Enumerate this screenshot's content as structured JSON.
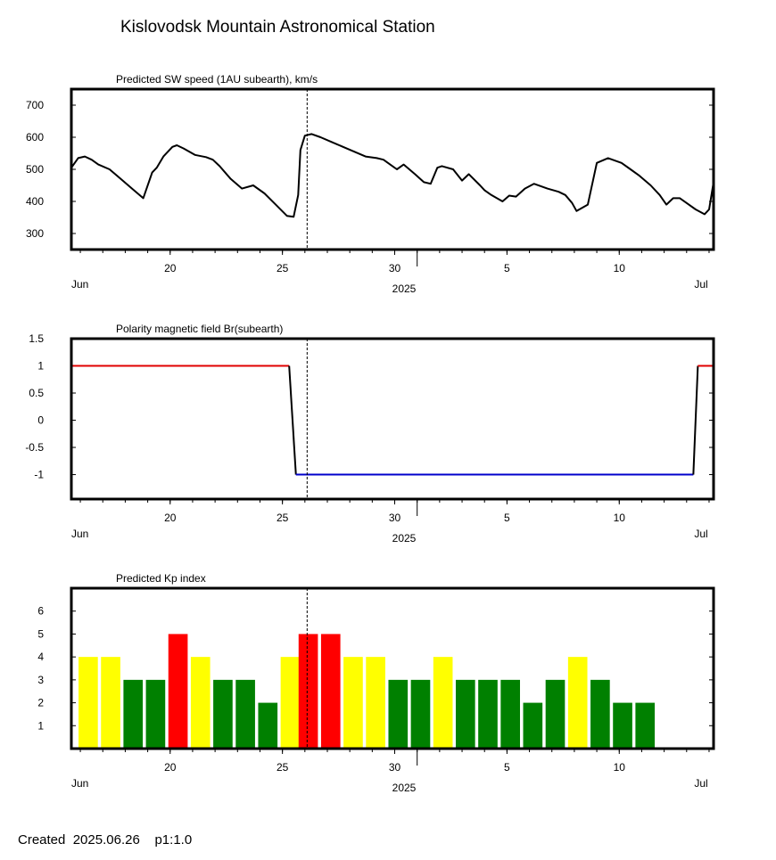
{
  "title": "Kislovodsk Mountain Astronomical Station",
  "footer": {
    "created_label": "Created",
    "created_date": "2025.06.26",
    "scale": "p1:1.0"
  },
  "time_axis": {
    "year_label": "2025",
    "month_labels": [
      "Jun",
      "Jul"
    ],
    "tick_labels": [
      "20",
      "25",
      "30",
      "5",
      "10"
    ],
    "current_day": 26.1
  },
  "chart_data": [
    {
      "type": "line",
      "title": "Predicted SW speed (1AU subearth), km/s",
      "xlabel": "2025",
      "ylabel": "",
      "x_units": "days since 2025-06-00 (June day number; 31 = July 1)",
      "ylim": [
        250,
        750
      ],
      "yticks": [
        300,
        400,
        500,
        600,
        700
      ],
      "series": [
        {
          "color": "#000000",
          "x": [
            15.6,
            15.9,
            16.2,
            16.5,
            16.8,
            17.3,
            17.8,
            18.3,
            18.8,
            19.2,
            19.4,
            19.7,
            20.1,
            20.3,
            20.6,
            21.1,
            21.6,
            21.9,
            22.2,
            22.7,
            23.2,
            23.7,
            24.2,
            24.7,
            25.2,
            25.5,
            25.7,
            25.8,
            26.0,
            26.3,
            26.7,
            27.2,
            27.7,
            28.2,
            28.7,
            29.2,
            29.5,
            29.9,
            30.1,
            30.4,
            30.9,
            31.3,
            31.6,
            31.9,
            32.1,
            32.6,
            33.0,
            33.3,
            33.8,
            34.0,
            34.3,
            34.8,
            35.1,
            35.4,
            35.8,
            36.2,
            36.8,
            37.3,
            37.6,
            37.9,
            38.1,
            38.6,
            39.0,
            39.5,
            40.1,
            40.5,
            40.9,
            41.4,
            41.8,
            42.1,
            42.4,
            42.7,
            43.0,
            43.4,
            43.8,
            44.0,
            44.2
          ],
          "y": [
            505,
            535,
            540,
            530,
            515,
            500,
            470,
            440,
            410,
            490,
            505,
            540,
            570,
            575,
            565,
            545,
            538,
            530,
            510,
            470,
            440,
            450,
            425,
            390,
            355,
            352,
            420,
            560,
            605,
            610,
            600,
            585,
            570,
            555,
            540,
            535,
            530,
            510,
            500,
            515,
            485,
            460,
            455,
            505,
            510,
            500,
            465,
            485,
            450,
            435,
            420,
            400,
            418,
            415,
            440,
            455,
            440,
            430,
            420,
            395,
            370,
            390,
            520,
            535,
            520,
            500,
            480,
            450,
            420,
            390,
            410,
            410,
            395,
            375,
            360,
            375,
            460
          ]
        }
      ]
    },
    {
      "type": "line",
      "title": "Polarity magnetic field  Br(subearth)",
      "xlabel": "2025",
      "ylabel": "",
      "x_units": "days since 2025-06-00 (June day number; 31 = July 1)",
      "ylim": [
        -1.45,
        1.5
      ],
      "yticks": [
        -1,
        -0.5,
        0,
        0.5,
        1,
        1.5
      ],
      "ytick_labels": [
        "-1",
        "-0.5",
        "0",
        "0.5",
        "1",
        "1.5"
      ],
      "segments": [
        {
          "polarity": "positive",
          "color": "#e00000",
          "x": [
            15.6,
            25.3
          ],
          "y": [
            1,
            1
          ]
        },
        {
          "polarity": "transition",
          "color": "#000000",
          "x": [
            25.3,
            25.6
          ],
          "y": [
            1,
            -1
          ]
        },
        {
          "polarity": "negative",
          "color": "#0000cc",
          "x": [
            25.6,
            43.3
          ],
          "y": [
            -1,
            -1
          ]
        },
        {
          "polarity": "transition",
          "color": "#000000",
          "x": [
            43.3,
            43.5
          ],
          "y": [
            -1,
            1
          ]
        },
        {
          "polarity": "positive",
          "color": "#e00000",
          "x": [
            43.5,
            44.2
          ],
          "y": [
            1,
            1
          ]
        }
      ]
    },
    {
      "type": "bar",
      "title": "Predicted Kp index",
      "xlabel": "2025",
      "ylabel": "",
      "x_units": "bar center, days since 2025-06-00",
      "ylim": [
        0,
        7
      ],
      "yticks": [
        1,
        2,
        3,
        4,
        5,
        6
      ],
      "colors": {
        "2": "#008000",
        "3": "#008000",
        "4": "#ffff00",
        "5": "#ff0000"
      },
      "x": [
        16.35,
        17.35,
        18.35,
        19.35,
        20.35,
        21.35,
        22.35,
        23.35,
        24.35,
        25.35,
        26.15,
        27.15,
        28.15,
        29.15,
        30.15,
        31.15,
        32.15,
        33.15,
        34.15,
        35.15,
        36.15,
        37.15,
        38.15,
        39.15,
        40.15,
        41.15
      ],
      "values": [
        4,
        4,
        3,
        3,
        5,
        4,
        3,
        3,
        2,
        4,
        5,
        5,
        4,
        4,
        3,
        3,
        4,
        3,
        3,
        3,
        2,
        3,
        4,
        3,
        2,
        2
      ]
    }
  ]
}
